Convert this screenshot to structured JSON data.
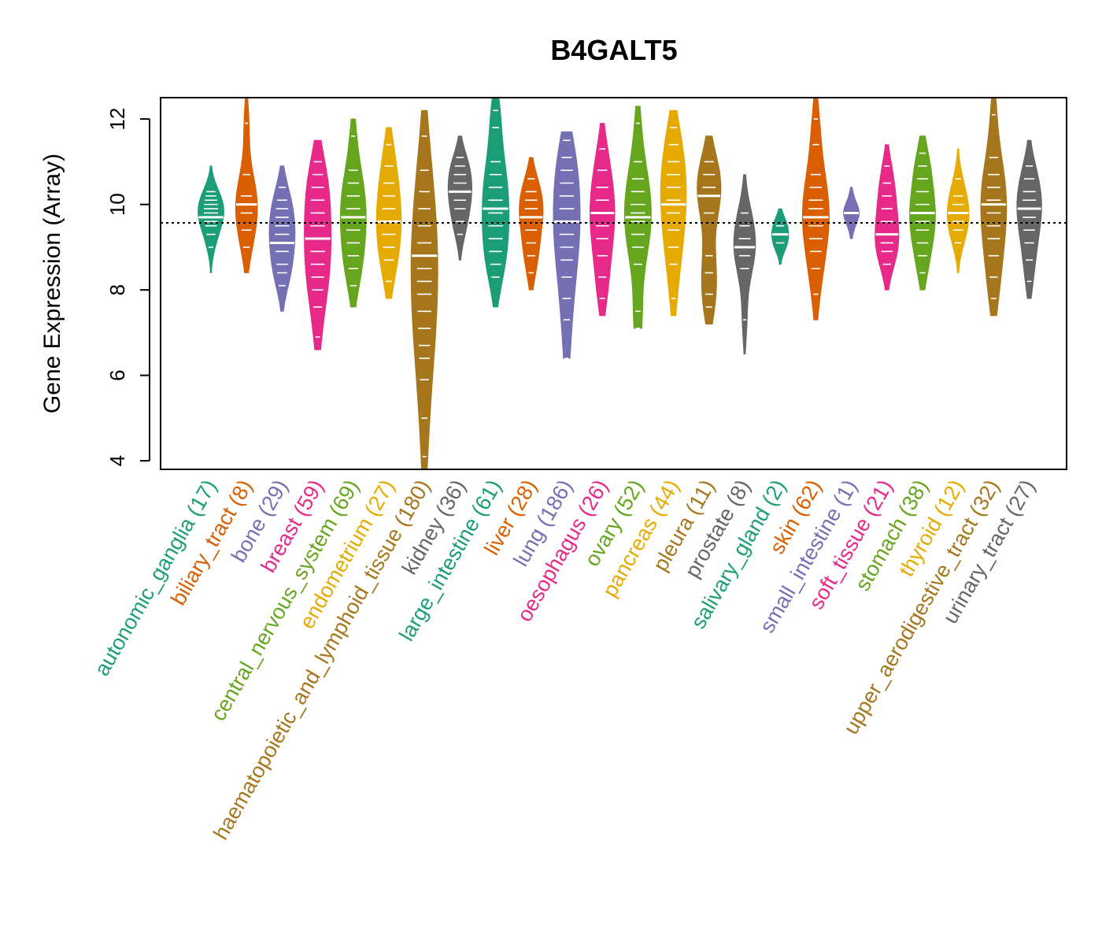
{
  "chart_data": {
    "type": "beanplot",
    "title": "B4GALT5",
    "ylabel": "Gene Expression (Array)",
    "xlabel": "",
    "ylim": [
      3.8,
      12.5
    ],
    "yticks": [
      4,
      6,
      8,
      10,
      12
    ],
    "reference_line": 9.57,
    "grid": false,
    "palette": [
      "#1b9e77",
      "#d95f02",
      "#7570b3",
      "#e7298a",
      "#66a61e",
      "#e6ab02",
      "#a6761d",
      "#666666"
    ],
    "categories": [
      {
        "label": "autonomic_ganglia (17)",
        "median": 9.7,
        "min": 8.4,
        "max": 10.9,
        "points": [
          9.0,
          9.3,
          9.5,
          9.6,
          9.7,
          9.8,
          9.9,
          10.0,
          10.1,
          10.2,
          10.3
        ]
      },
      {
        "label": "biliary_tract (8)",
        "median": 10.0,
        "min": 8.4,
        "max": 12.5,
        "points": [
          9.0,
          9.4,
          9.8,
          10.0,
          10.2,
          10.7,
          11.9
        ]
      },
      {
        "label": "bone (29)",
        "median": 9.1,
        "min": 7.5,
        "max": 10.9,
        "points": [
          8.1,
          8.4,
          8.6,
          8.9,
          9.1,
          9.3,
          9.5,
          9.7,
          9.9,
          10.1,
          10.4
        ]
      },
      {
        "label": "breast (59)",
        "median": 9.2,
        "min": 6.6,
        "max": 11.5,
        "points": [
          6.9,
          7.6,
          8.0,
          8.3,
          8.6,
          8.9,
          9.2,
          9.5,
          9.8,
          10.1,
          10.4,
          10.7,
          11.0
        ]
      },
      {
        "label": "central_nervous_system (69)",
        "median": 9.7,
        "min": 7.6,
        "max": 12.0,
        "points": [
          8.1,
          8.5,
          8.8,
          9.1,
          9.4,
          9.7,
          9.9,
          10.2,
          10.5,
          10.8,
          11.6
        ]
      },
      {
        "label": "endometrium (27)",
        "median": 9.6,
        "min": 7.8,
        "max": 11.8,
        "points": [
          8.2,
          8.7,
          9.0,
          9.3,
          9.6,
          9.9,
          10.2,
          10.5,
          10.9,
          11.4
        ]
      },
      {
        "label": "haematopoietic_and_lymphoid_tissue (180)",
        "median": 8.8,
        "min": 3.8,
        "max": 12.2,
        "points": [
          4.1,
          5.0,
          5.9,
          6.4,
          6.7,
          7.1,
          7.5,
          7.9,
          8.2,
          8.5,
          8.8,
          9.1,
          9.5,
          9.9,
          10.3,
          10.8,
          11.6
        ]
      },
      {
        "label": "kidney (36)",
        "median": 10.3,
        "min": 8.7,
        "max": 11.6,
        "points": [
          9.3,
          9.6,
          9.9,
          10.1,
          10.3,
          10.5,
          10.7,
          10.9,
          11.1
        ]
      },
      {
        "label": "large_intestine (61)",
        "median": 9.9,
        "min": 7.6,
        "max": 12.5,
        "points": [
          8.3,
          8.6,
          8.9,
          9.2,
          9.5,
          9.8,
          10.1,
          10.4,
          10.7,
          11.0,
          11.8,
          12.2
        ]
      },
      {
        "label": "liver (28)",
        "median": 9.7,
        "min": 8.0,
        "max": 11.1,
        "points": [
          8.4,
          8.8,
          9.1,
          9.4,
          9.7,
          9.9,
          10.1,
          10.3,
          10.6
        ]
      },
      {
        "label": "lung (186)",
        "median": 9.6,
        "min": 6.4,
        "max": 11.7,
        "points": [
          6.4,
          7.3,
          7.8,
          8.3,
          8.7,
          9.0,
          9.3,
          9.6,
          9.9,
          10.2,
          10.5,
          10.8,
          11.1,
          11.5
        ]
      },
      {
        "label": "oesophagus (26)",
        "median": 9.8,
        "min": 7.4,
        "max": 11.9,
        "points": [
          7.8,
          8.3,
          8.8,
          9.2,
          9.5,
          9.8,
          10.1,
          10.4,
          10.8,
          11.3
        ]
      },
      {
        "label": "ovary (52)",
        "median": 9.7,
        "min": 7.1,
        "max": 12.3,
        "points": [
          7.1,
          7.5,
          8.6,
          9.0,
          9.3,
          9.6,
          9.8,
          10.0,
          10.3,
          10.6,
          11.0,
          11.9
        ]
      },
      {
        "label": "pancreas (44)",
        "median": 10.0,
        "min": 7.4,
        "max": 12.2,
        "points": [
          7.8,
          8.6,
          9.0,
          9.4,
          9.8,
          10.1,
          10.4,
          10.7,
          11.0,
          11.4,
          11.8
        ]
      },
      {
        "label": "pleura (11)",
        "median": 10.2,
        "min": 7.2,
        "max": 11.6,
        "points": [
          7.6,
          7.9,
          8.4,
          8.8,
          9.8,
          10.2,
          10.4,
          10.7,
          11.0
        ]
      },
      {
        "label": "prostate (8)",
        "median": 9.0,
        "min": 6.5,
        "max": 10.7,
        "points": [
          7.3,
          8.5,
          8.8,
          9.0,
          9.2,
          9.5,
          9.8
        ]
      },
      {
        "label": "salivary_gland (2)",
        "median": 9.3,
        "min": 8.6,
        "max": 9.9,
        "points": [
          9.1,
          9.5
        ]
      },
      {
        "label": "skin (62)",
        "median": 9.7,
        "min": 7.3,
        "max": 12.5,
        "points": [
          7.9,
          8.5,
          8.9,
          9.2,
          9.5,
          9.7,
          9.9,
          10.1,
          10.4,
          10.7,
          11.4,
          12.0
        ]
      },
      {
        "label": "small_intestine (1)",
        "median": 9.8,
        "min": 9.2,
        "max": 10.4,
        "points": [
          9.8
        ]
      },
      {
        "label": "soft_tissue (21)",
        "median": 9.3,
        "min": 8.0,
        "max": 11.4,
        "points": [
          8.6,
          8.9,
          9.1,
          9.3,
          9.6,
          9.9,
          10.2,
          10.5,
          10.9
        ]
      },
      {
        "label": "stomach (38)",
        "median": 9.8,
        "min": 8.0,
        "max": 11.6,
        "points": [
          8.4,
          8.8,
          9.1,
          9.4,
          9.6,
          9.8,
          10.0,
          10.3,
          10.6,
          10.9,
          11.2
        ]
      },
      {
        "label": "thyroid (12)",
        "median": 9.8,
        "min": 8.4,
        "max": 11.3,
        "points": [
          9.1,
          9.4,
          9.6,
          9.8,
          10.0,
          10.2,
          10.6
        ]
      },
      {
        "label": "upper_aerodigestive_tract (32)",
        "median": 10.0,
        "min": 7.4,
        "max": 12.5,
        "points": [
          7.8,
          8.3,
          8.8,
          9.2,
          9.5,
          9.8,
          10.1,
          10.4,
          10.7,
          11.1,
          12.1
        ]
      },
      {
        "label": "urinary_tract (27)",
        "median": 9.9,
        "min": 7.8,
        "max": 11.5,
        "points": [
          8.2,
          8.7,
          9.1,
          9.4,
          9.7,
          9.9,
          10.1,
          10.3,
          10.6,
          10.9
        ]
      }
    ]
  }
}
